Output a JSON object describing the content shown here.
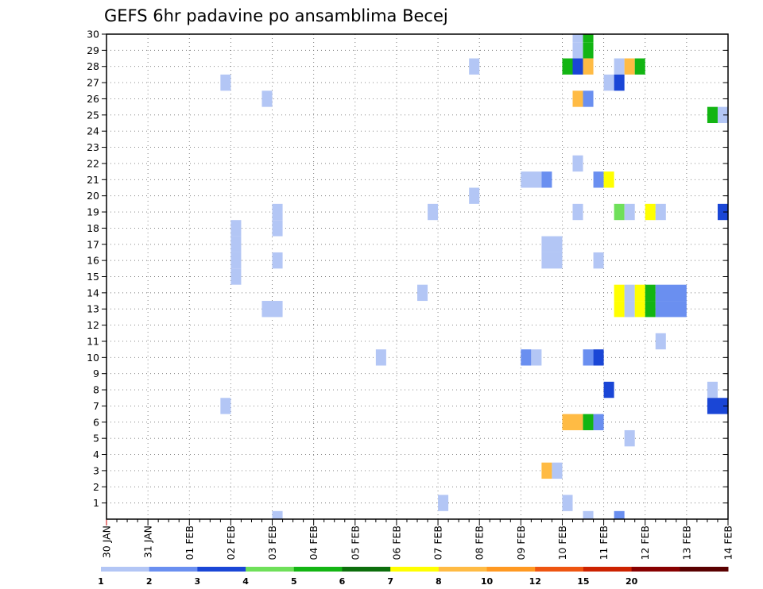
{
  "chart_data": {
    "type": "heatmap",
    "title": "GEFS 6hr padavine po ansamblima Becej",
    "xlabel": "",
    "ylabel": "",
    "x_tick_labels": [
      "30 JAN",
      "31 JAN",
      "01 FEB",
      "02 FEB",
      "03 FEB",
      "04 FEB",
      "05 FEB",
      "06 FEB",
      "07 FEB",
      "08 FEB",
      "09 FEB",
      "10 FEB",
      "11 FEB",
      "12 FEB",
      "13 FEB",
      "14 FEB"
    ],
    "y_ticks": [
      1,
      2,
      3,
      4,
      5,
      6,
      7,
      8,
      9,
      10,
      11,
      12,
      13,
      14,
      15,
      16,
      17,
      18,
      19,
      20,
      21,
      22,
      23,
      24,
      25,
      26,
      27,
      28,
      29,
      30
    ],
    "xlim_days": [
      0,
      15
    ],
    "ylim": [
      0,
      30
    ],
    "grid": true,
    "x_step_hours": 6,
    "colorbar": {
      "levels": [
        "1",
        "2",
        "3",
        "4",
        "5",
        "6",
        "7",
        "8",
        "10",
        "12",
        "15",
        "20"
      ],
      "colors": [
        "#b3c6f5",
        "#6a8ff0",
        "#1a46d6",
        "#6fe05a",
        "#13b513",
        "#0c6e0c",
        "#ffff00",
        "#ffbb44",
        "#ff9922",
        "#ee5511",
        "#cc2200",
        "#880000",
        "#5a0000"
      ]
    },
    "cells": [
      {
        "member": 30,
        "day": 11.25,
        "span": 0.25,
        "color": "#b3c6f5"
      },
      {
        "member": 30,
        "day": 11.5,
        "span": 0.25,
        "color": "#13b513"
      },
      {
        "member": 29,
        "day": 11.25,
        "span": 0.25,
        "color": "#b3c6f5"
      },
      {
        "member": 29,
        "day": 11.5,
        "span": 0.25,
        "color": "#13b513"
      },
      {
        "member": 28,
        "day": 8.75,
        "span": 0.25,
        "color": "#b3c6f5"
      },
      {
        "member": 28,
        "day": 11.0,
        "span": 0.25,
        "color": "#13b513"
      },
      {
        "member": 28,
        "day": 11.25,
        "span": 0.25,
        "color": "#1a46d6"
      },
      {
        "member": 28,
        "day": 11.5,
        "span": 0.25,
        "color": "#ffbb44"
      },
      {
        "member": 28,
        "day": 12.25,
        "span": 0.25,
        "color": "#b3c6f5"
      },
      {
        "member": 28,
        "day": 12.5,
        "span": 0.25,
        "color": "#ffbb44"
      },
      {
        "member": 28,
        "day": 12.75,
        "span": 0.25,
        "color": "#13b513"
      },
      {
        "member": 27,
        "day": 2.75,
        "span": 0.25,
        "color": "#b3c6f5"
      },
      {
        "member": 27,
        "day": 12.0,
        "span": 0.25,
        "color": "#b3c6f5"
      },
      {
        "member": 27,
        "day": 12.25,
        "span": 0.25,
        "color": "#1a46d6"
      },
      {
        "member": 26,
        "day": 3.75,
        "span": 0.25,
        "color": "#b3c6f5"
      },
      {
        "member": 26,
        "day": 11.25,
        "span": 0.25,
        "color": "#ffbb44"
      },
      {
        "member": 26,
        "day": 11.5,
        "span": 0.25,
        "color": "#6a8ff0"
      },
      {
        "member": 25,
        "day": 14.5,
        "span": 0.25,
        "color": "#13b513"
      },
      {
        "member": 25,
        "day": 14.75,
        "span": 0.25,
        "color": "#b3c6f5"
      },
      {
        "member": 22,
        "day": 11.25,
        "span": 0.25,
        "color": "#b3c6f5"
      },
      {
        "member": 21,
        "day": 10.0,
        "span": 0.5,
        "color": "#b3c6f5"
      },
      {
        "member": 21,
        "day": 10.5,
        "span": 0.25,
        "color": "#6a8ff0"
      },
      {
        "member": 21,
        "day": 11.75,
        "span": 0.25,
        "color": "#6a8ff0"
      },
      {
        "member": 21,
        "day": 12.0,
        "span": 0.25,
        "color": "#ffff00"
      },
      {
        "member": 20,
        "day": 8.75,
        "span": 0.25,
        "color": "#b3c6f5"
      },
      {
        "member": 19,
        "day": 4.0,
        "span": 0.25,
        "color": "#b3c6f5"
      },
      {
        "member": 19,
        "day": 7.75,
        "span": 0.25,
        "color": "#b3c6f5"
      },
      {
        "member": 19,
        "day": 11.25,
        "span": 0.25,
        "color": "#b3c6f5"
      },
      {
        "member": 19,
        "day": 12.25,
        "span": 0.25,
        "color": "#6fe05a"
      },
      {
        "member": 19,
        "day": 12.5,
        "span": 0.25,
        "color": "#b3c6f5"
      },
      {
        "member": 19,
        "day": 13.0,
        "span": 0.25,
        "color": "#ffff00"
      },
      {
        "member": 19,
        "day": 13.25,
        "span": 0.25,
        "color": "#b3c6f5"
      },
      {
        "member": 19,
        "day": 14.75,
        "span": 0.25,
        "color": "#1a46d6"
      },
      {
        "member": 18,
        "day": 3.0,
        "span": 0.25,
        "color": "#b3c6f5"
      },
      {
        "member": 18,
        "day": 4.0,
        "span": 0.25,
        "color": "#b3c6f5"
      },
      {
        "member": 17,
        "day": 3.0,
        "span": 0.25,
        "color": "#b3c6f5"
      },
      {
        "member": 17,
        "day": 10.5,
        "span": 0.5,
        "color": "#b3c6f5"
      },
      {
        "member": 16,
        "day": 3.0,
        "span": 0.25,
        "color": "#b3c6f5"
      },
      {
        "member": 16,
        "day": 4.0,
        "span": 0.25,
        "color": "#b3c6f5"
      },
      {
        "member": 16,
        "day": 10.5,
        "span": 0.5,
        "color": "#b3c6f5"
      },
      {
        "member": 16,
        "day": 11.75,
        "span": 0.25,
        "color": "#b3c6f5"
      },
      {
        "member": 15,
        "day": 3.0,
        "span": 0.25,
        "color": "#b3c6f5"
      },
      {
        "member": 14,
        "day": 7.5,
        "span": 0.25,
        "color": "#b3c6f5"
      },
      {
        "member": 14,
        "day": 12.25,
        "span": 0.25,
        "color": "#ffff00"
      },
      {
        "member": 14,
        "day": 12.5,
        "span": 0.25,
        "color": "#b3c6f5"
      },
      {
        "member": 14,
        "day": 12.75,
        "span": 0.25,
        "color": "#ffff00"
      },
      {
        "member": 14,
        "day": 13.0,
        "span": 0.25,
        "color": "#13b513"
      },
      {
        "member": 14,
        "day": 13.25,
        "span": 0.75,
        "color": "#6a8ff0"
      },
      {
        "member": 13,
        "day": 3.75,
        "span": 0.5,
        "color": "#b3c6f5"
      },
      {
        "member": 13,
        "day": 12.25,
        "span": 0.25,
        "color": "#ffff00"
      },
      {
        "member": 13,
        "day": 12.5,
        "span": 0.25,
        "color": "#b3c6f5"
      },
      {
        "member": 13,
        "day": 12.75,
        "span": 0.25,
        "color": "#ffff00"
      },
      {
        "member": 13,
        "day": 13.0,
        "span": 0.25,
        "color": "#13b513"
      },
      {
        "member": 13,
        "day": 13.25,
        "span": 0.75,
        "color": "#6a8ff0"
      },
      {
        "member": 11,
        "day": 13.25,
        "span": 0.25,
        "color": "#b3c6f5"
      },
      {
        "member": 10,
        "day": 6.5,
        "span": 0.25,
        "color": "#b3c6f5"
      },
      {
        "member": 10,
        "day": 10.0,
        "span": 0.25,
        "color": "#6a8ff0"
      },
      {
        "member": 10,
        "day": 10.25,
        "span": 0.25,
        "color": "#b3c6f5"
      },
      {
        "member": 10,
        "day": 11.5,
        "span": 0.25,
        "color": "#6a8ff0"
      },
      {
        "member": 10,
        "day": 11.75,
        "span": 0.25,
        "color": "#1a46d6"
      },
      {
        "member": 8,
        "day": 12.0,
        "span": 0.25,
        "color": "#1a46d6"
      },
      {
        "member": 8,
        "day": 14.5,
        "span": 0.25,
        "color": "#b3c6f5"
      },
      {
        "member": 7,
        "day": 2.75,
        "span": 0.25,
        "color": "#b3c6f5"
      },
      {
        "member": 7,
        "day": 14.5,
        "span": 0.5,
        "color": "#1a46d6"
      },
      {
        "member": 6,
        "day": 11.0,
        "span": 0.5,
        "color": "#ffbb44"
      },
      {
        "member": 6,
        "day": 11.5,
        "span": 0.25,
        "color": "#13b513"
      },
      {
        "member": 6,
        "day": 11.75,
        "span": 0.25,
        "color": "#6a8ff0"
      },
      {
        "member": 5,
        "day": 12.5,
        "span": 0.25,
        "color": "#b3c6f5"
      },
      {
        "member": 3,
        "day": 10.5,
        "span": 0.25,
        "color": "#ffbb44"
      },
      {
        "member": 3,
        "day": 10.75,
        "span": 0.25,
        "color": "#b3c6f5"
      },
      {
        "member": 1,
        "day": 8.0,
        "span": 0.25,
        "color": "#b3c6f5"
      },
      {
        "member": 1,
        "day": 11.0,
        "span": 0.25,
        "color": "#b3c6f5"
      },
      {
        "member": 0,
        "day": 4.0,
        "span": 0.25,
        "color": "#b3c6f5"
      },
      {
        "member": 0,
        "day": 11.5,
        "span": 0.25,
        "color": "#b3c6f5"
      },
      {
        "member": 0,
        "day": 12.25,
        "span": 0.25,
        "color": "#6a8ff0"
      }
    ]
  }
}
